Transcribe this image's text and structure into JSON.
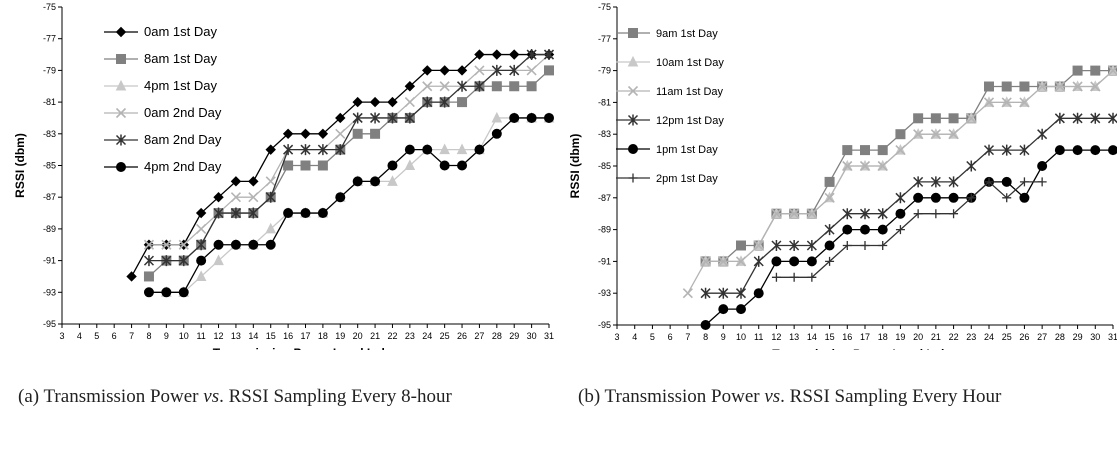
{
  "chart_data": [
    {
      "type": "line",
      "xlabel": "Transmission Power Level Index",
      "ylabel": "RSSI (dbm)",
      "xlim": [
        3,
        31
      ],
      "ylim": [
        -95,
        -75
      ],
      "xticks": [
        3,
        4,
        5,
        6,
        7,
        8,
        9,
        10,
        11,
        12,
        13,
        14,
        15,
        16,
        17,
        18,
        19,
        20,
        21,
        22,
        23,
        24,
        25,
        26,
        27,
        28,
        29,
        30,
        31
      ],
      "yticks": [
        -75,
        -77,
        -79,
        -81,
        -83,
        -85,
        -87,
        -89,
        -91,
        -93,
        -95
      ],
      "grid": false,
      "legend_position": "top-left",
      "series": [
        {
          "name": "0am 1st Day",
          "color": "#000000",
          "marker": "diamond",
          "x": [
            7,
            8,
            9,
            10,
            11,
            12,
            13,
            14,
            15,
            16,
            17,
            18,
            19,
            20,
            21,
            22,
            23,
            24,
            25,
            26,
            27,
            28,
            29,
            30,
            31
          ],
          "y": [
            -92,
            -90,
            -90,
            -90,
            -88,
            -87,
            -86,
            -86,
            -84,
            -83,
            -83,
            -83,
            -82,
            -81,
            -81,
            -81,
            -80,
            -79,
            -79,
            -79,
            -78,
            -78,
            -78,
            -78,
            -78
          ]
        },
        {
          "name": "8am 1st Day",
          "color": "#808080",
          "marker": "square",
          "x": [
            8,
            9,
            10,
            11,
            12,
            13,
            14,
            15,
            16,
            17,
            18,
            19,
            20,
            21,
            22,
            23,
            24,
            25,
            26,
            27,
            28,
            29,
            30,
            31
          ],
          "y": [
            -92,
            -91,
            -91,
            -90,
            -88,
            -88,
            -88,
            -87,
            -85,
            -85,
            -85,
            -84,
            -83,
            -83,
            -82,
            -82,
            -81,
            -81,
            -81,
            -80,
            -80,
            -80,
            -80,
            -79
          ]
        },
        {
          "name": "4pm 1st Day",
          "color": "#c8c8c8",
          "marker": "triangle",
          "x": [
            9,
            10,
            11,
            12,
            13,
            14,
            15,
            16,
            17,
            18,
            19,
            20,
            21,
            22,
            23,
            24,
            25,
            26,
            27,
            28,
            29,
            30,
            31
          ],
          "y": [
            -93,
            -93,
            -92,
            -91,
            -90,
            -90,
            -89,
            -88,
            -88,
            -88,
            -87,
            -86,
            -86,
            -86,
            -85,
            -84,
            -84,
            -84,
            -84,
            -82,
            -82,
            -82,
            -82
          ]
        },
        {
          "name": "0am 2nd Day",
          "color": "#b4b4b4",
          "marker": "x",
          "x": [
            8,
            9,
            10,
            11,
            12,
            13,
            14,
            15,
            16,
            17,
            18,
            19,
            20,
            21,
            22,
            23,
            24,
            25,
            26,
            27,
            28,
            29,
            30,
            31
          ],
          "y": [
            -90,
            -90,
            -90,
            -89,
            -88,
            -87,
            -87,
            -86,
            -84,
            -84,
            -84,
            -83,
            -82,
            -82,
            -82,
            -81,
            -80,
            -80,
            -80,
            -79,
            -79,
            -79,
            -79,
            -78
          ]
        },
        {
          "name": "8am 2nd Day",
          "color": "#333333",
          "marker": "asterisk",
          "x": [
            8,
            9,
            10,
            11,
            12,
            13,
            14,
            15,
            16,
            17,
            18,
            19,
            20,
            21,
            22,
            23,
            24,
            25,
            26,
            27,
            28,
            29,
            30,
            31
          ],
          "y": [
            -91,
            -91,
            -91,
            -90,
            -88,
            -88,
            -88,
            -87,
            -84,
            -84,
            -84,
            -84,
            -82,
            -82,
            -82,
            -82,
            -81,
            -81,
            -80,
            -80,
            -79,
            -79,
            -78,
            -78
          ]
        },
        {
          "name": "4pm 2nd Day",
          "color": "#000000",
          "marker": "circle",
          "x": [
            8,
            9,
            10,
            11,
            12,
            13,
            14,
            15,
            16,
            17,
            18,
            19,
            20,
            21,
            22,
            23,
            24,
            25,
            26,
            27,
            28,
            29,
            30,
            31
          ],
          "y": [
            -93,
            -93,
            -93,
            -91,
            -90,
            -90,
            -90,
            -90,
            -88,
            -88,
            -88,
            -87,
            -86,
            -86,
            -85,
            -84,
            -84,
            -85,
            -85,
            -84,
            -83,
            -82,
            -82,
            -82
          ]
        }
      ]
    },
    {
      "type": "line",
      "xlabel": "Transmission Power Level Index",
      "ylabel": "RSSI (dbm)",
      "xlim": [
        3,
        31
      ],
      "ylim": [
        -95,
        -75
      ],
      "xticks": [
        3,
        4,
        5,
        6,
        7,
        8,
        9,
        10,
        11,
        12,
        13,
        14,
        15,
        16,
        17,
        18,
        19,
        20,
        21,
        22,
        23,
        24,
        25,
        26,
        27,
        28,
        29,
        30,
        31
      ],
      "yticks": [
        -75,
        -77,
        -79,
        -81,
        -83,
        -85,
        -87,
        -89,
        -91,
        -93,
        -95
      ],
      "grid": false,
      "legend_position": "top-left",
      "series": [
        {
          "name": "9am 1st Day",
          "color": "#808080",
          "marker": "square",
          "x": [
            8,
            9,
            10,
            11,
            12,
            13,
            14,
            15,
            16,
            17,
            18,
            19,
            20,
            21,
            22,
            23,
            24,
            25,
            26,
            27,
            28,
            29,
            30,
            31
          ],
          "y": [
            -91,
            -91,
            -90,
            -90,
            -88,
            -88,
            -88,
            -86,
            -84,
            -84,
            -84,
            -83,
            -82,
            -82,
            -82,
            -82,
            -80,
            -80,
            -80,
            -80,
            -80,
            -79,
            -79,
            -79
          ]
        },
        {
          "name": "10am 1st Day",
          "color": "#c8c8c8",
          "marker": "triangle",
          "x": [
            8,
            9,
            10,
            11,
            12,
            13,
            14,
            15,
            16,
            17,
            18,
            19,
            20,
            21,
            22,
            23,
            24,
            25,
            26,
            27,
            28,
            29,
            30,
            31
          ],
          "y": [
            -91,
            -91,
            -91,
            -90,
            -88,
            -88,
            -88,
            -87,
            -85,
            -85,
            -85,
            -84,
            -83,
            -83,
            -83,
            -82,
            -81,
            -81,
            -81,
            -80,
            -80,
            -80,
            -80,
            -79
          ]
        },
        {
          "name": "11am 1st Day",
          "color": "#b4b4b4",
          "marker": "x",
          "x": [
            7,
            8,
            9,
            10,
            11,
            12,
            13,
            14,
            15,
            16,
            17,
            18,
            19,
            20,
            21,
            22,
            23,
            24,
            25,
            26,
            27,
            28,
            29,
            30,
            31
          ],
          "y": [
            -93,
            -91,
            -91,
            -91,
            -90,
            -88,
            -88,
            -88,
            -87,
            -85,
            -85,
            -85,
            -84,
            -83,
            -83,
            -83,
            -82,
            -81,
            -81,
            -81,
            -80,
            -80,
            -80,
            -80,
            -79
          ]
        },
        {
          "name": "12pm 1st Day",
          "color": "#333333",
          "marker": "asterisk",
          "x": [
            8,
            9,
            10,
            11,
            12,
            13,
            14,
            15,
            16,
            17,
            18,
            19,
            20,
            21,
            22,
            23,
            24,
            25,
            26,
            27,
            28,
            29,
            30,
            31
          ],
          "y": [
            -93,
            -93,
            -93,
            -91,
            -90,
            -90,
            -90,
            -89,
            -88,
            -88,
            -88,
            -87,
            -86,
            -86,
            -86,
            -85,
            -84,
            -84,
            -84,
            -83,
            -82,
            -82,
            -82,
            -82
          ]
        },
        {
          "name": "1pm 1st Day",
          "color": "#000000",
          "marker": "circle",
          "x": [
            8,
            9,
            10,
            11,
            12,
            13,
            14,
            15,
            16,
            17,
            18,
            19,
            20,
            21,
            22,
            23,
            24,
            25,
            26,
            27,
            28,
            29,
            30,
            31
          ],
          "y": [
            -95,
            -94,
            -94,
            -93,
            -91,
            -91,
            -91,
            -90,
            -89,
            -89,
            -89,
            -88,
            -87,
            -87,
            -87,
            -87,
            -86,
            -86,
            -87,
            -85,
            -84,
            -84,
            -84,
            -84
          ]
        },
        {
          "name": "2pm 1st Day",
          "color": "#333333",
          "marker": "plus",
          "x": [
            12,
            13,
            14,
            15,
            16,
            17,
            18,
            19,
            20,
            21,
            22,
            23,
            24,
            25,
            26,
            27
          ],
          "y": [
            -92,
            -92,
            -92,
            -91,
            -90,
            -90,
            -90,
            -89,
            -88,
            -88,
            -88,
            -87,
            -86,
            -87,
            -86,
            -86
          ]
        }
      ]
    }
  ],
  "captions": {
    "a": {
      "prefix": "(a) Transmission Power ",
      "em": "vs",
      "suffix": ". RSSI Sampling Every 8-hour"
    },
    "b": {
      "prefix": "(b) Transmission Power ",
      "em": "vs",
      "suffix": ". RSSI Sampling Every Hour"
    }
  }
}
